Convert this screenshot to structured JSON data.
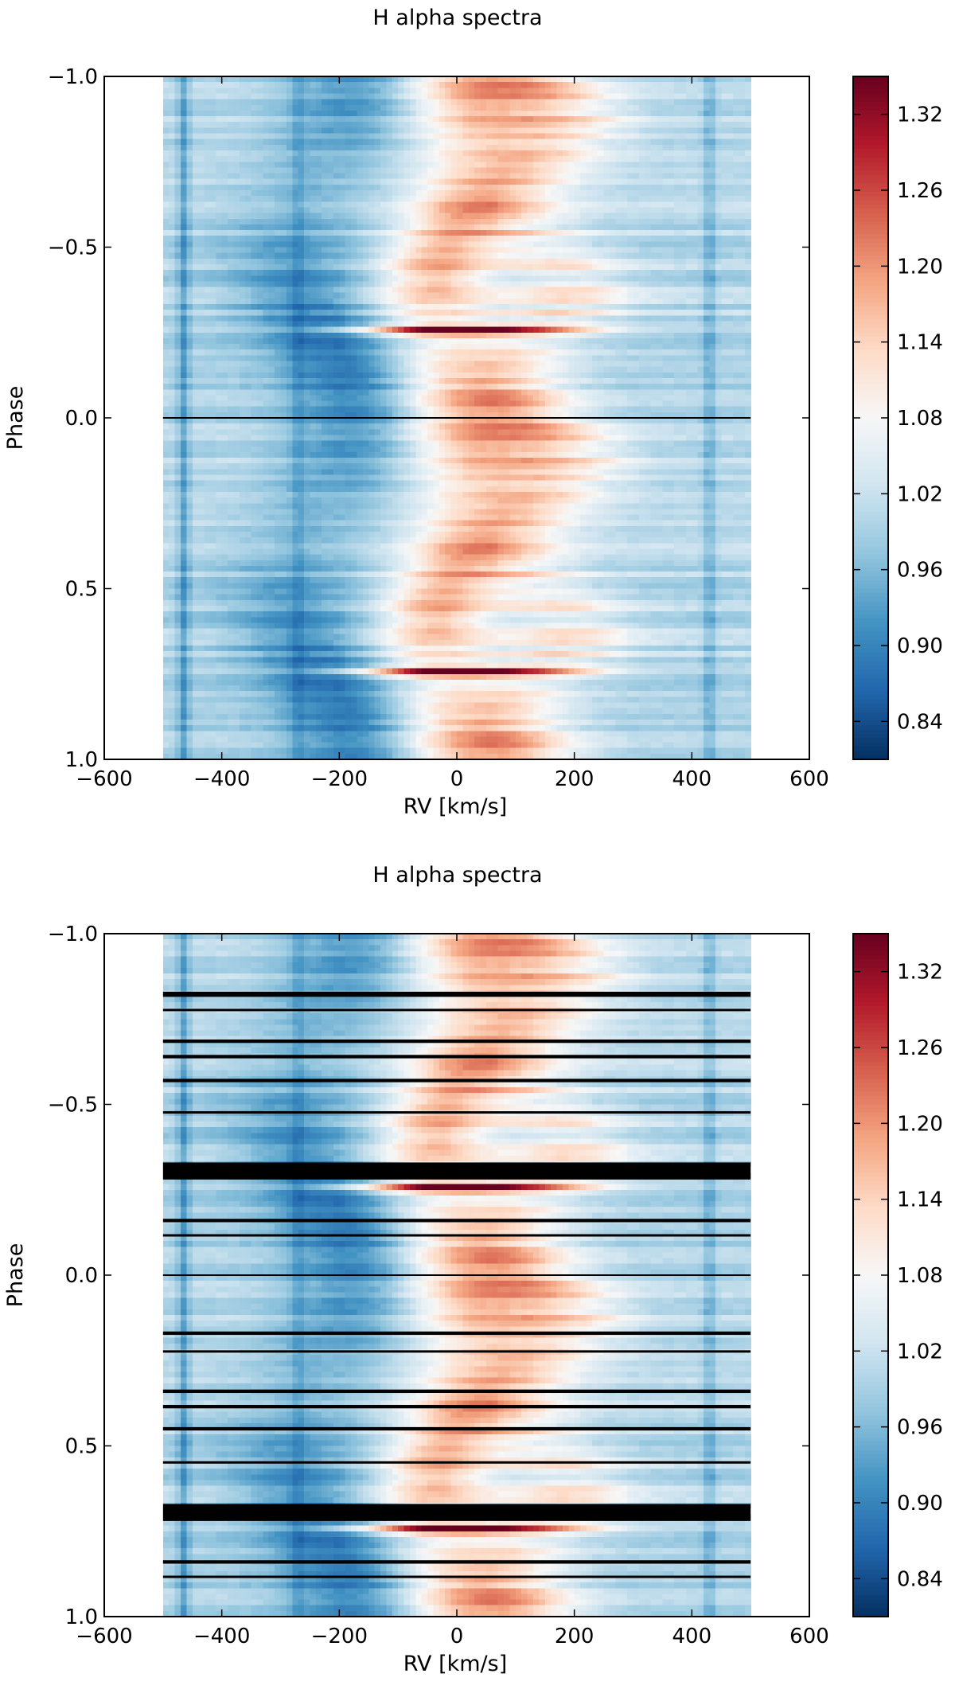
{
  "chart_data": [
    {
      "type": "heatmap",
      "title": "H alpha spectra",
      "xlabel": "RV [km/s]",
      "ylabel": "Phase",
      "xlim": [
        -600,
        600
      ],
      "ylim": [
        -1.0,
        1.0
      ],
      "y_inverted": true,
      "x_ticks": [
        -600,
        -400,
        -200,
        0,
        200,
        400,
        600
      ],
      "x_tick_labels": [
        "−600",
        "−400",
        "−200",
        "0",
        "200",
        "400",
        "600"
      ],
      "y_ticks": [
        -1.0,
        -0.5,
        0.0,
        0.5,
        1.0
      ],
      "y_tick_labels": [
        "−1.0",
        "−0.5",
        "0.0",
        "0.5",
        "1.0"
      ],
      "data_x_range": [
        -500,
        500
      ],
      "colormap": "RdBu_r",
      "colors": [
        "#053061",
        "#2166ac",
        "#4393c3",
        "#92c5de",
        "#d1e5f0",
        "#f7f7f7",
        "#fddbc7",
        "#f4a582",
        "#d6604d",
        "#b2182b",
        "#67001f"
      ],
      "color_range": [
        0.81,
        1.35
      ],
      "colorbar_ticks": [
        0.84,
        0.9,
        0.96,
        1.02,
        1.08,
        1.14,
        1.2,
        1.26,
        1.32
      ],
      "colorbar_tick_labels": [
        "0.84",
        "0.90",
        "0.96",
        "1.02",
        "1.08",
        "1.14",
        "1.20",
        "1.26",
        "1.32"
      ],
      "reference_line_phase": 0.0,
      "masked_phase_bands": []
    },
    {
      "type": "heatmap",
      "title": "H alpha spectra",
      "xlabel": "RV [km/s]",
      "ylabel": "Phase",
      "xlim": [
        -600,
        600
      ],
      "ylim": [
        -1.0,
        1.0
      ],
      "y_inverted": true,
      "x_ticks": [
        -600,
        -400,
        -200,
        0,
        200,
        400,
        600
      ],
      "x_tick_labels": [
        "−600",
        "−400",
        "−200",
        "0",
        "200",
        "400",
        "600"
      ],
      "y_ticks": [
        -1.0,
        -0.5,
        0.0,
        0.5,
        1.0
      ],
      "y_tick_labels": [
        "−1.0",
        "−0.5",
        "0.0",
        "0.5",
        "1.0"
      ],
      "data_x_range": [
        -500,
        500
      ],
      "colormap": "RdBu_r",
      "colors": [
        "#053061",
        "#2166ac",
        "#4393c3",
        "#92c5de",
        "#d1e5f0",
        "#f7f7f7",
        "#fddbc7",
        "#f4a582",
        "#d6604d",
        "#b2182b",
        "#67001f"
      ],
      "color_range": [
        0.81,
        1.35
      ],
      "colorbar_ticks": [
        0.84,
        0.9,
        0.96,
        1.02,
        1.08,
        1.14,
        1.2,
        1.26,
        1.32
      ],
      "colorbar_tick_labels": [
        "0.84",
        "0.90",
        "0.96",
        "1.02",
        "1.08",
        "1.14",
        "1.20",
        "1.26",
        "1.32"
      ],
      "reference_line_phase": 0.0,
      "masked_phase_bands": [
        [
          -0.83,
          -0.815
        ],
        [
          -0.78,
          -0.775
        ],
        [
          -0.69,
          -0.68
        ],
        [
          -0.645,
          -0.635
        ],
        [
          -0.575,
          -0.565
        ],
        [
          -0.48,
          -0.475
        ],
        [
          -0.33,
          -0.28
        ],
        [
          -0.165,
          -0.155
        ],
        [
          -0.12,
          -0.115
        ],
        [
          0.165,
          0.175
        ],
        [
          0.22,
          0.225
        ],
        [
          0.335,
          0.345
        ],
        [
          0.38,
          0.39
        ],
        [
          0.445,
          0.455
        ],
        [
          0.545,
          0.55
        ],
        [
          0.67,
          0.72
        ],
        [
          0.835,
          0.845
        ],
        [
          0.88,
          0.885
        ]
      ]
    }
  ]
}
